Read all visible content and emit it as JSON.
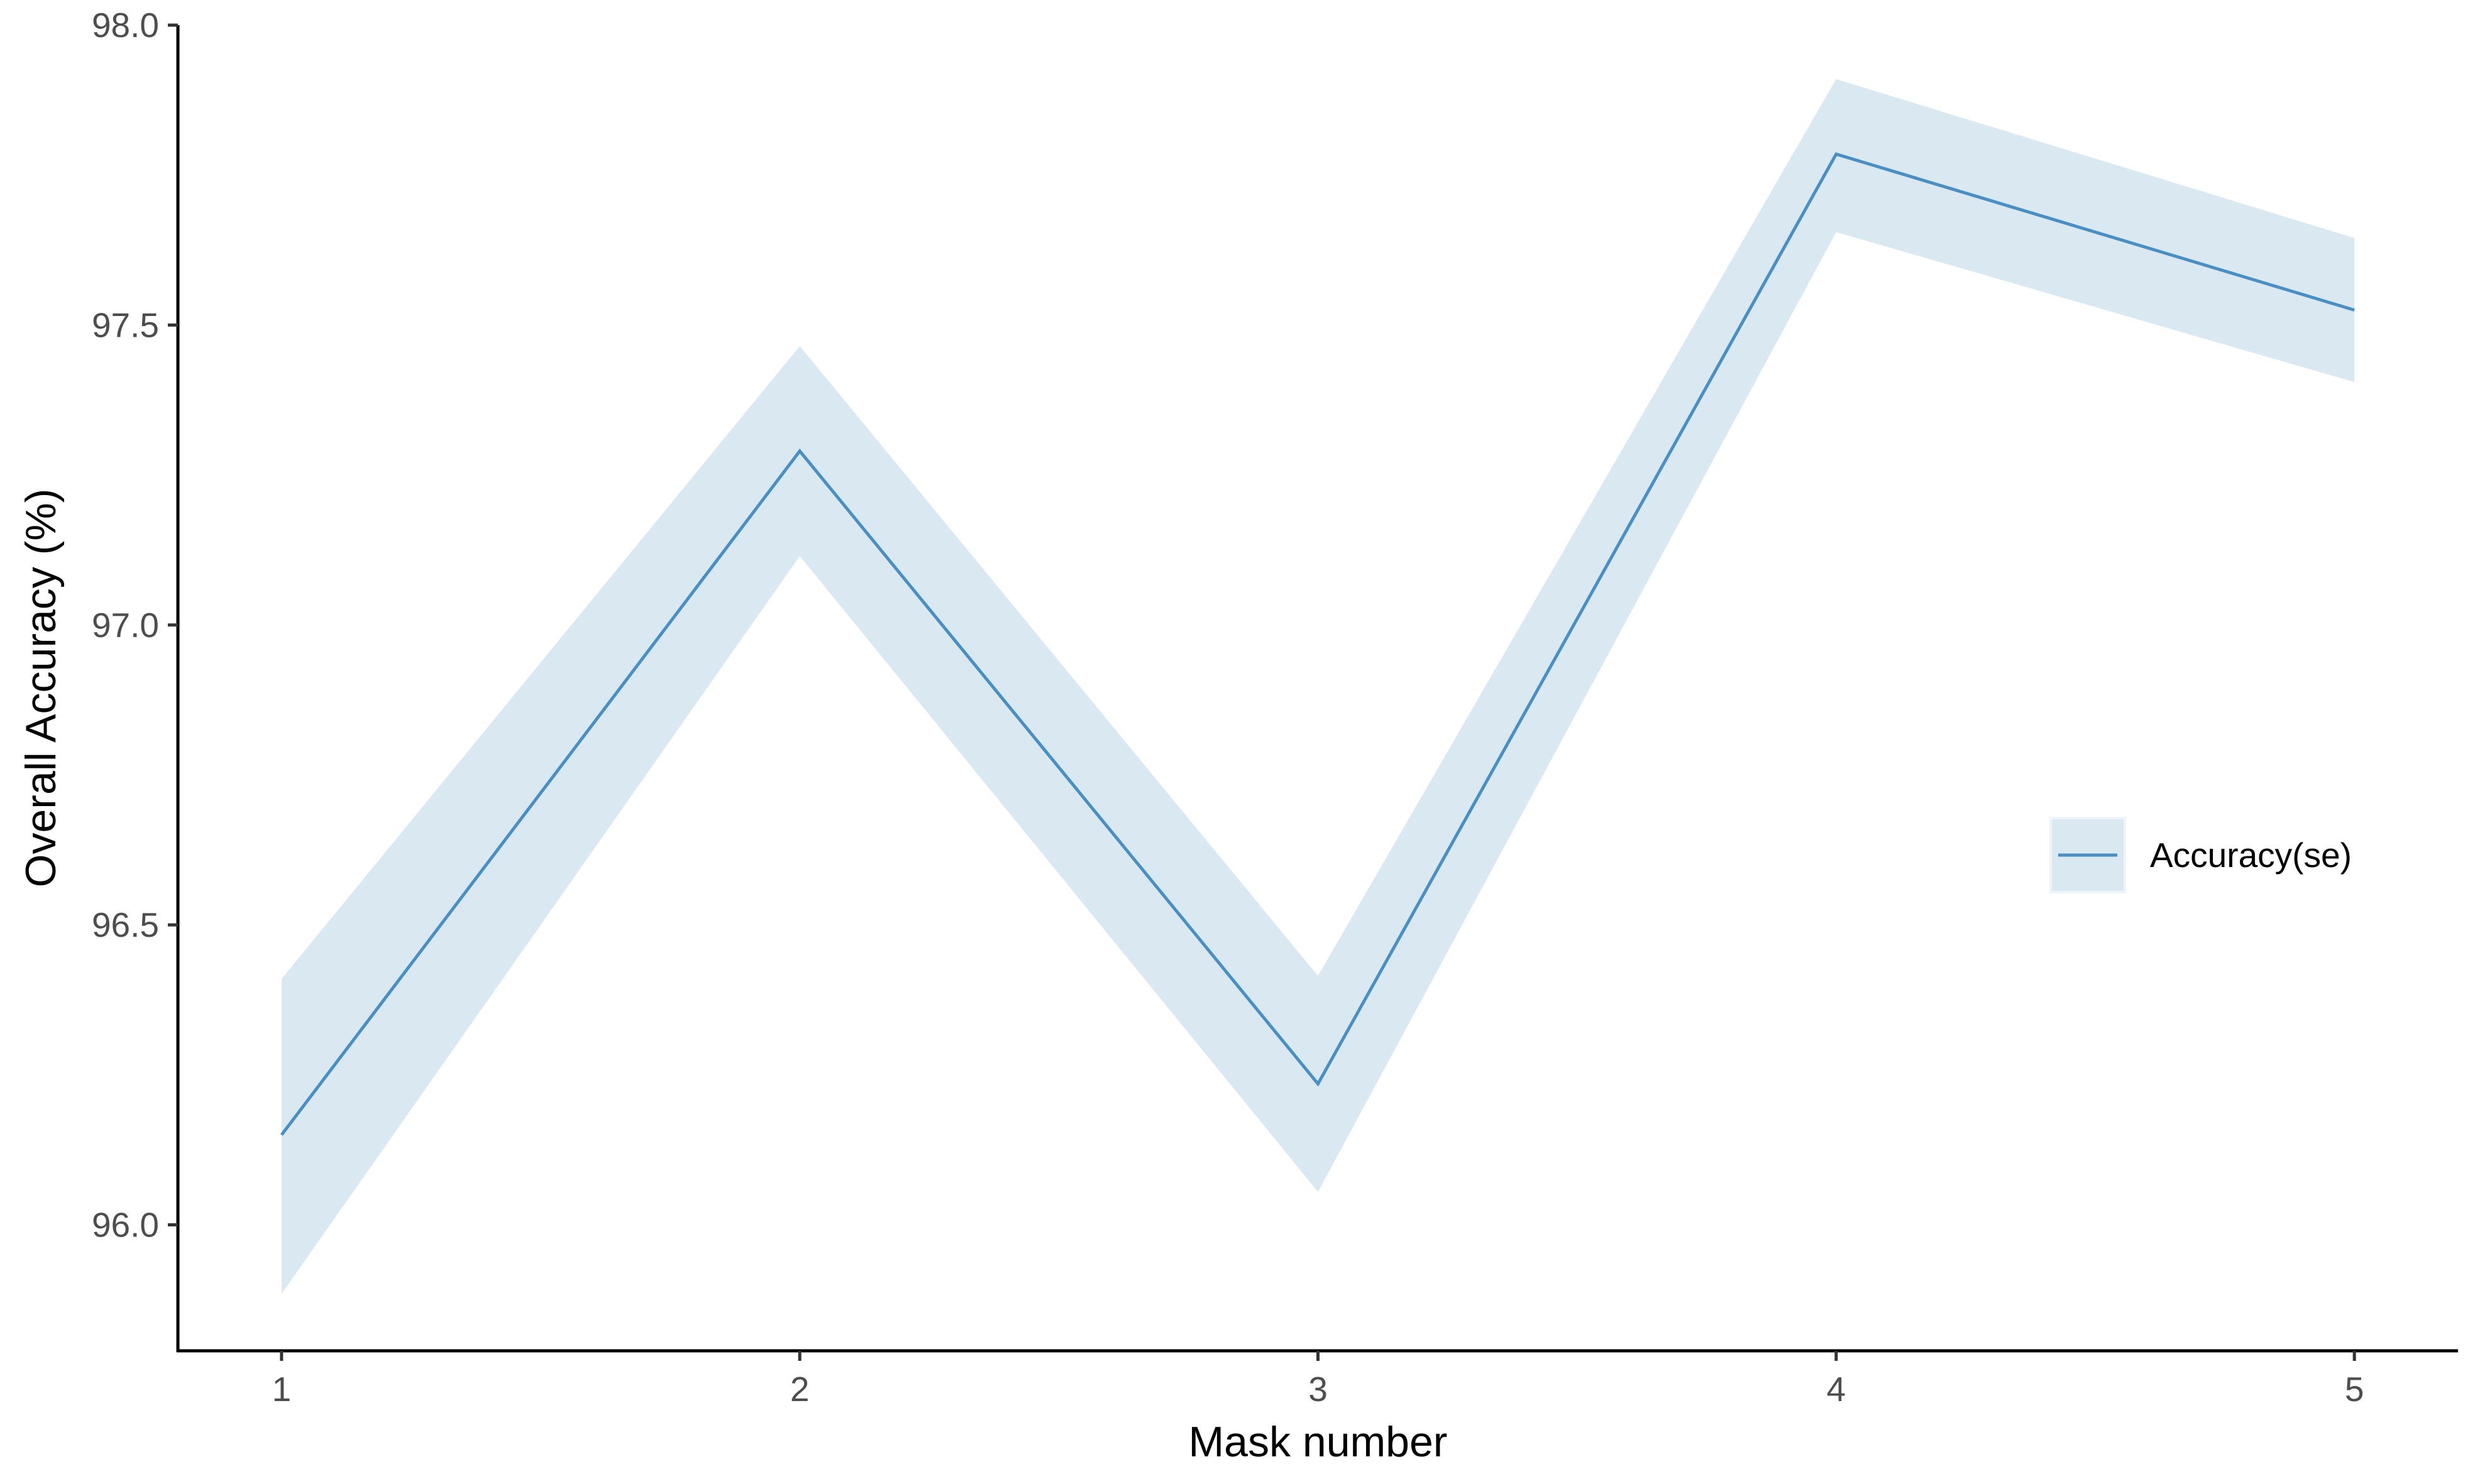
{
  "chart_data": {
    "type": "line",
    "title": "",
    "xlabel": "Mask number",
    "ylabel": "Overall Accuracy (%)",
    "x": [
      1,
      2,
      3,
      4,
      5
    ],
    "xticks": [
      "1",
      "2",
      "3",
      "4",
      "5"
    ],
    "yticks": [
      "96.0",
      "96.5",
      "97.0",
      "97.5",
      "98.0"
    ],
    "xlim": [
      0.8,
      5.2
    ],
    "ylim": [
      95.79,
      98.0
    ],
    "grid": false,
    "legend_position": "right",
    "series": [
      {
        "name": "Accuracy(se)",
        "values": [
          96.15,
          97.29,
          96.235,
          97.785,
          97.525
        ],
        "lower": [
          95.885,
          97.115,
          96.055,
          97.655,
          97.405
        ],
        "upper": [
          96.41,
          97.465,
          96.415,
          97.91,
          97.645
        ],
        "line_color": "#4a8fc4",
        "band_color": "#dae8f2"
      }
    ]
  }
}
